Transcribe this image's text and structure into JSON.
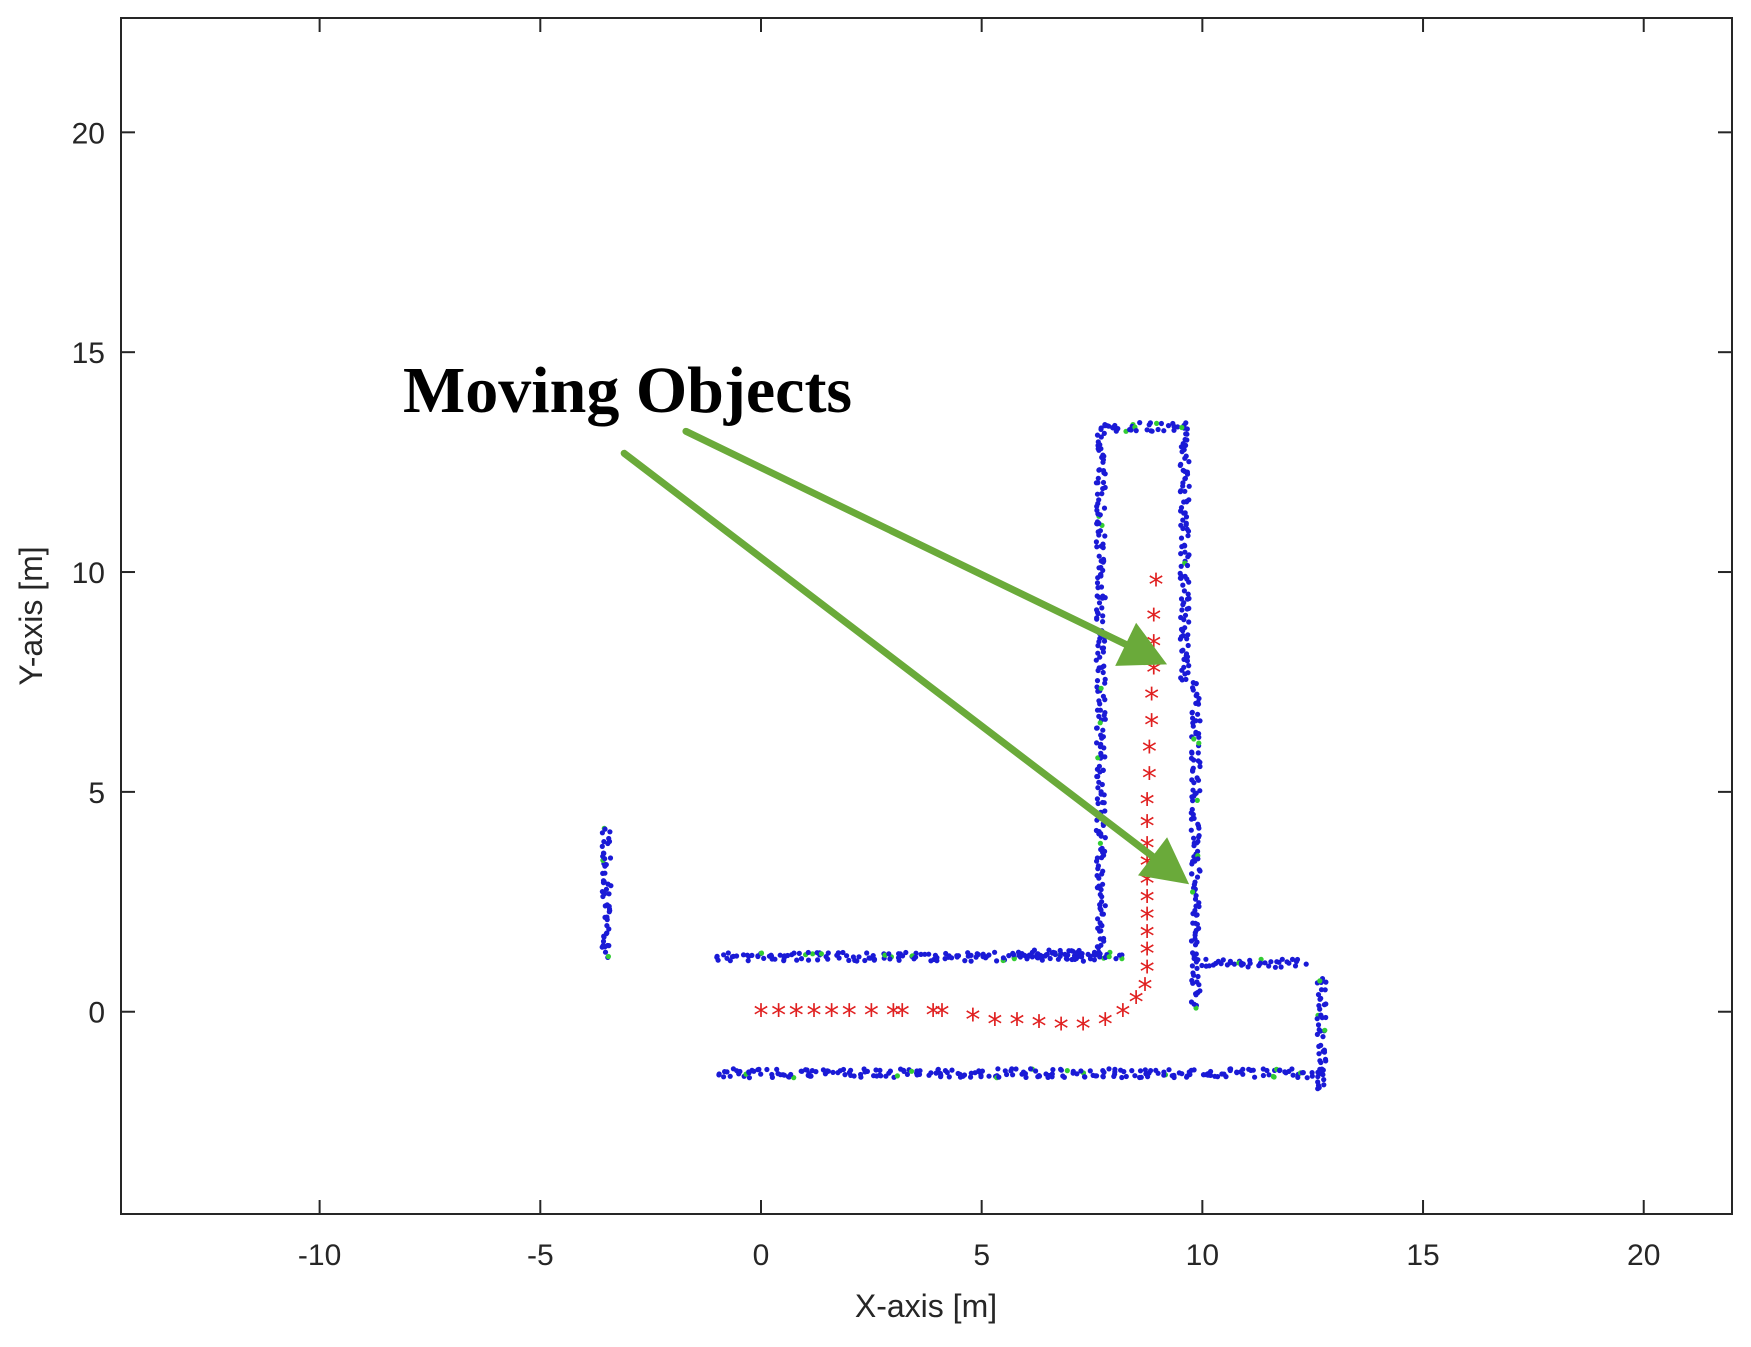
{
  "chart_data": {
    "type": "scatter",
    "xlabel": "X-axis [m]",
    "ylabel": "Y-axis [m]",
    "xlim": [
      -14.5,
      22
    ],
    "ylim": [
      -4.6,
      22.6
    ],
    "xticks": [
      -10,
      -5,
      0,
      5,
      10,
      15,
      20
    ],
    "yticks": [
      0,
      5,
      10,
      15,
      20
    ],
    "grid": false,
    "colors": {
      "scan_points": "#1a1ad6",
      "scan_points_secondary": "#33cc33",
      "trajectory": "#e02020",
      "arrows": "#6aaa3a",
      "axes": "#262626"
    },
    "walls": [
      {
        "x": [
          -1,
          8.2
        ],
        "y": [
          1.25,
          1.25
        ]
      },
      {
        "x": [
          -1,
          12.7
        ],
        "y": [
          -1.4,
          -1.4
        ]
      },
      {
        "x": [
          7.7,
          7.7
        ],
        "y": [
          1.25,
          13.3
        ]
      },
      {
        "x": [
          7.7,
          9.6
        ],
        "y": [
          13.3,
          13.3
        ]
      },
      {
        "x": [
          9.6,
          9.6
        ],
        "y": [
          13.3,
          7.5
        ]
      },
      {
        "x": [
          9.85,
          9.85
        ],
        "y": [
          7.5,
          0.1
        ]
      },
      {
        "x": [
          9.9,
          12.3
        ],
        "y": [
          1.1,
          1.1
        ]
      },
      {
        "x": [
          12.7,
          12.7
        ],
        "y": [
          0.8,
          -1.8
        ]
      },
      {
        "x": [
          -3.5,
          -3.5
        ],
        "y": [
          1.2,
          4.2
        ]
      },
      {
        "x": [
          5.8,
          7.5
        ],
        "y": [
          1.3,
          1.3
        ]
      }
    ],
    "trajectory": {
      "x": [
        0,
        0.4,
        0.8,
        1.2,
        1.6,
        2.0,
        2.5,
        3.0,
        3.2,
        3.9,
        4.1,
        4.8,
        5.3,
        5.8,
        6.3,
        6.8,
        7.3,
        7.8,
        8.2,
        8.5,
        8.7,
        8.75,
        8.75,
        8.75,
        8.75,
        8.75,
        8.75,
        8.75,
        8.75,
        8.75,
        8.75,
        8.8,
        8.8,
        8.85,
        8.85,
        8.9,
        8.9,
        8.9,
        8.95
      ],
      "y": [
        0,
        0,
        0,
        0,
        0,
        0,
        0,
        0,
        0,
        0,
        0,
        -0.1,
        -0.2,
        -0.2,
        -0.25,
        -0.3,
        -0.3,
        -0.2,
        0,
        0.3,
        0.6,
        1.0,
        1.4,
        1.8,
        2.2,
        2.6,
        3.0,
        3.4,
        3.8,
        4.3,
        4.8,
        5.4,
        6.0,
        6.6,
        7.2,
        7.8,
        8.4,
        9.0,
        9.8
      ]
    },
    "annotation": {
      "text": "Moving Objects",
      "arrows": [
        {
          "from": [
            -1.7,
            13.2
          ],
          "to": [
            9.2,
            7.9
          ]
        },
        {
          "from": [
            -3.1,
            12.7
          ],
          "to": [
            9.7,
            2.9
          ]
        }
      ]
    }
  }
}
